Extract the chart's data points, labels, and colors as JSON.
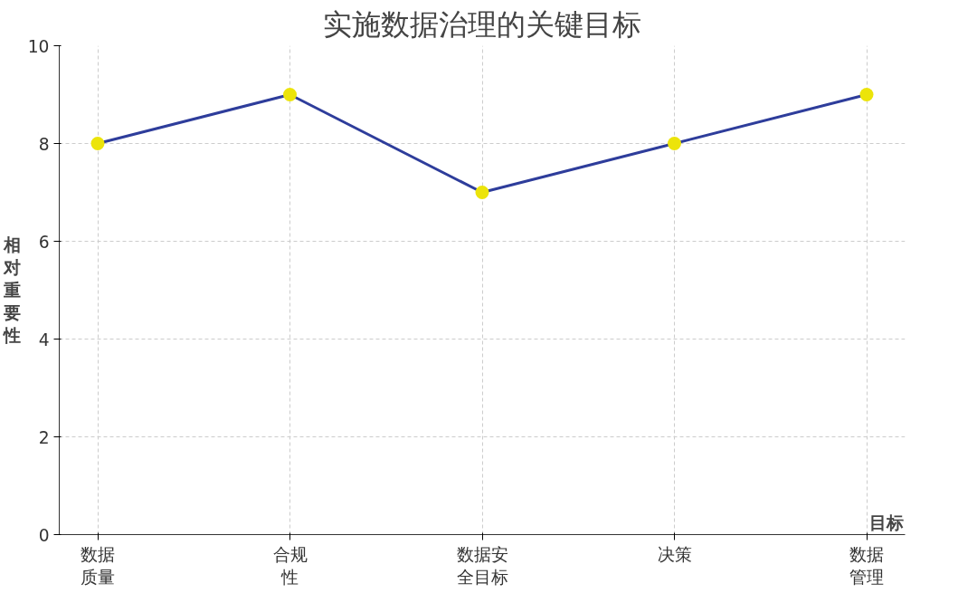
{
  "chart_data": {
    "type": "line",
    "title": "实施数据治理的关键目标",
    "xlabel": "目标",
    "ylabel": "相对重要性",
    "categories": [
      "数据质量",
      "合规性",
      "数据安全目标",
      "决策",
      "数据管理"
    ],
    "series": [
      {
        "color": "#2e3d9b",
        "values": [
          8,
          9,
          7,
          8,
          9
        ]
      }
    ],
    "marker": "circle",
    "line_style": "solid",
    "ylim": [
      0,
      10
    ],
    "yticks": [
      0,
      2,
      4,
      6,
      8,
      10
    ],
    "grid": true
  }
}
